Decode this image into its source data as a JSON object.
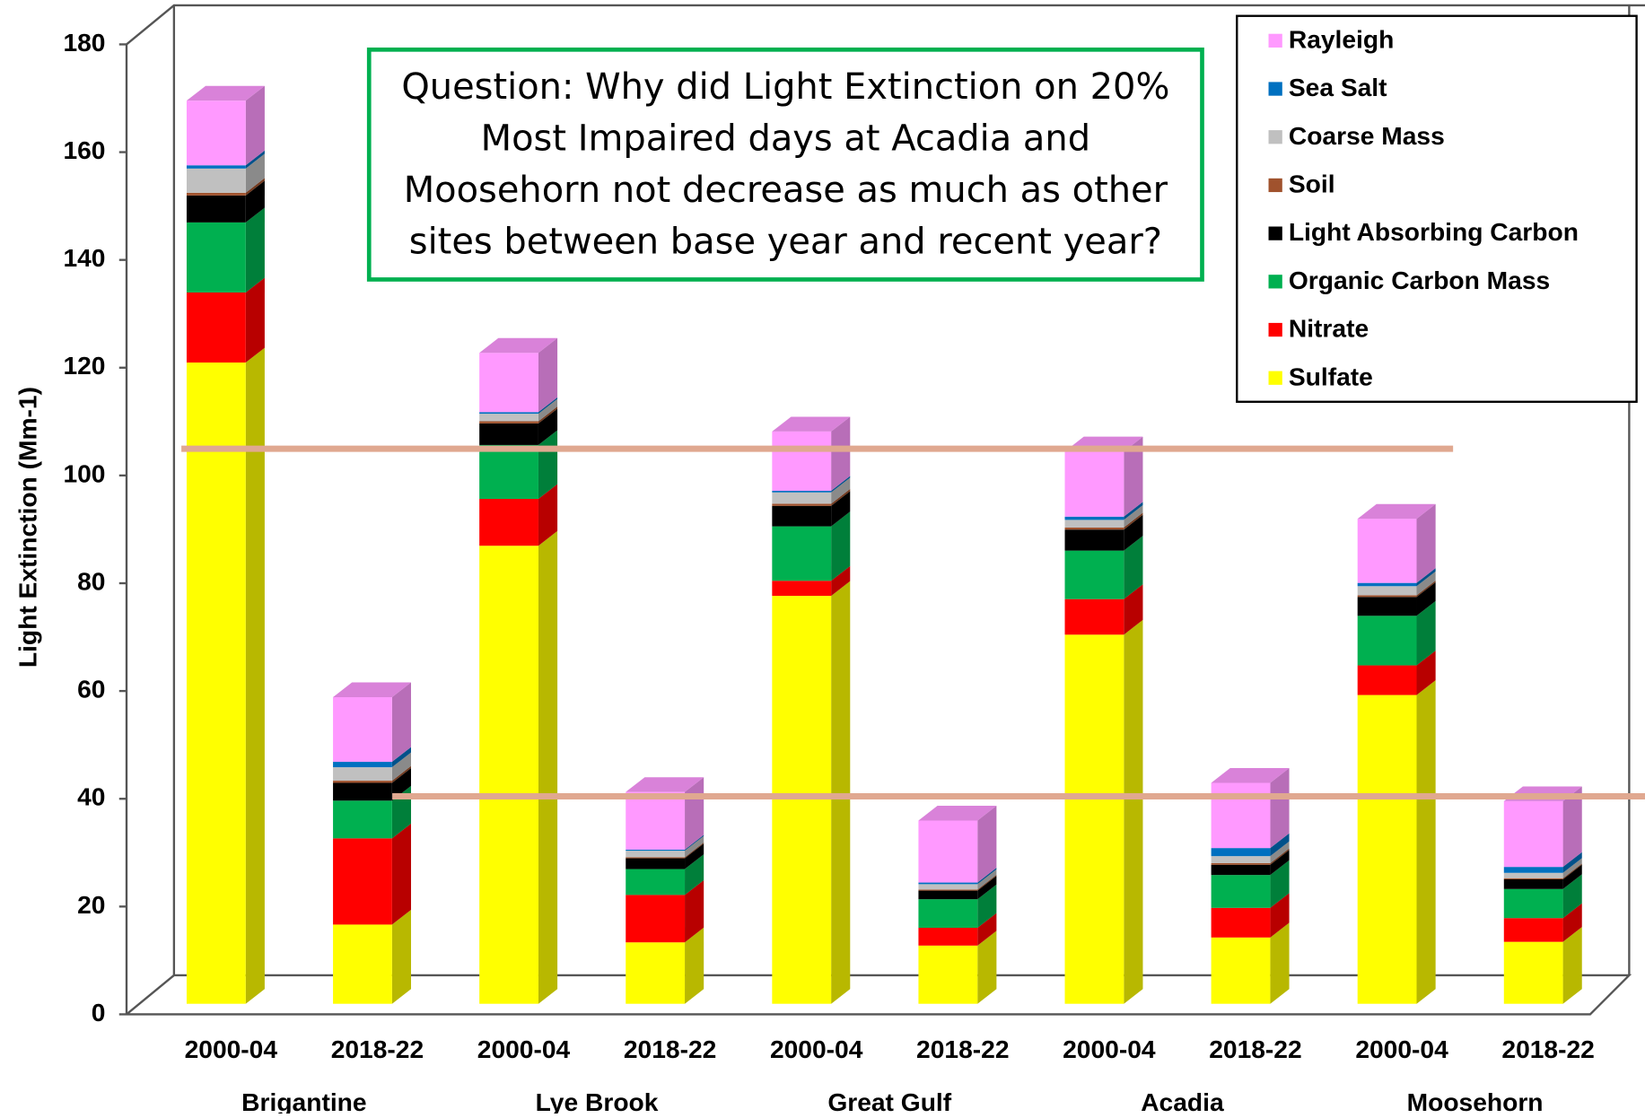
{
  "chart_data": {
    "type": "stacked_bar_3d",
    "ylabel": "Light Extinction (Mm-1)",
    "annotation": [
      "Question: Why did Light Extinction on 20%",
      "Most Impaired days at Acadia and",
      "Moosehorn not decrease as much as other",
      "sites between base year and recent year?"
    ],
    "categories": [
      "2000-04",
      "2018-22",
      "2000-04",
      "2018-22",
      "2000-04",
      "2018-22",
      "2000-04",
      "2018-22",
      "2000-04",
      "2018-22"
    ],
    "groups": [
      "Brigantine",
      "Lye Brook",
      "Great Gulf",
      "Acadia",
      "Moosehorn"
    ],
    "series": [
      {
        "name": "Sulfate",
        "color": "#ffff00",
        "values": [
          119,
          14.7,
          85,
          11.4,
          75.7,
          10.8,
          68.5,
          12.3,
          57.3,
          11.5
        ]
      },
      {
        "name": "Nitrate",
        "color": "#ff0000",
        "values": [
          13,
          16,
          8.7,
          8.8,
          2.8,
          3.3,
          6.6,
          5.5,
          5.5,
          4.4
        ]
      },
      {
        "name": "Organic Carbon Mass",
        "color": "#00b050",
        "values": [
          13,
          7,
          10,
          4.8,
          10.1,
          5.3,
          9,
          6.1,
          9.2,
          5.4
        ]
      },
      {
        "name": "Light Absorbing Carbon",
        "color": "#000000",
        "values": [
          5,
          3.3,
          4,
          2,
          3.8,
          1.6,
          3.9,
          1.9,
          3.5,
          1.8
        ]
      },
      {
        "name": "Soil",
        "color": "#a0522d",
        "values": [
          0.5,
          0.4,
          0.4,
          0.2,
          0.4,
          0.2,
          0.4,
          0.3,
          0.3,
          0.2
        ]
      },
      {
        "name": "Coarse Mass",
        "color": "#c0c0c0",
        "values": [
          4.5,
          2.5,
          1.4,
          1.2,
          2.1,
          1,
          1.4,
          1.3,
          1.7,
          1
        ]
      },
      {
        "name": "Sea Salt",
        "color": "#0070c0",
        "values": [
          0.6,
          1,
          0.3,
          0.2,
          0.3,
          0.3,
          0.6,
          1.5,
          0.6,
          1.1
        ]
      },
      {
        "name": "Rayleigh",
        "color": "#ff99ff",
        "values": [
          12,
          12,
          11,
          10.7,
          11,
          11.5,
          12.1,
          12.1,
          11.9,
          12.2
        ]
      }
    ],
    "reference_lines": [
      103,
      38.5
    ],
    "reference_color": "#e0a890",
    "ylim": [
      0,
      180
    ],
    "yticks": [
      0,
      20,
      40,
      60,
      80,
      100,
      120,
      140,
      160,
      180
    ]
  }
}
